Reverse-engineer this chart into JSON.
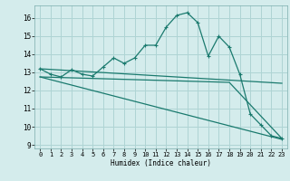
{
  "xlabel": "Humidex (Indice chaleur)",
  "bg_color": "#d4ecec",
  "grid_color": "#aed4d4",
  "line_color": "#1a7a6e",
  "xlim": [
    -0.5,
    23.5
  ],
  "ylim": [
    8.8,
    16.7
  ],
  "yticks": [
    9,
    10,
    11,
    12,
    13,
    14,
    15,
    16
  ],
  "xticks": [
    0,
    1,
    2,
    3,
    4,
    5,
    6,
    7,
    8,
    9,
    10,
    11,
    12,
    13,
    14,
    15,
    16,
    17,
    18,
    19,
    20,
    21,
    22,
    23
  ],
  "series1_x": [
    0,
    1,
    2,
    3,
    4,
    5,
    6,
    7,
    8,
    9,
    10,
    11,
    12,
    13,
    14,
    15,
    16,
    17,
    18,
    19,
    20,
    21,
    22,
    23
  ],
  "series1_y": [
    13.2,
    12.9,
    12.75,
    13.15,
    12.9,
    12.8,
    13.3,
    13.8,
    13.5,
    13.8,
    14.5,
    14.5,
    15.5,
    16.15,
    16.3,
    15.75,
    13.9,
    15.0,
    14.4,
    12.9,
    10.7,
    10.1,
    9.5,
    9.35
  ],
  "series2_x": [
    0,
    23
  ],
  "series2_y": [
    13.2,
    12.4
  ],
  "series3_x": [
    0,
    18,
    23
  ],
  "series3_y": [
    12.75,
    12.45,
    9.35
  ],
  "series4_x": [
    0,
    23
  ],
  "series4_y": [
    12.75,
    9.3
  ]
}
